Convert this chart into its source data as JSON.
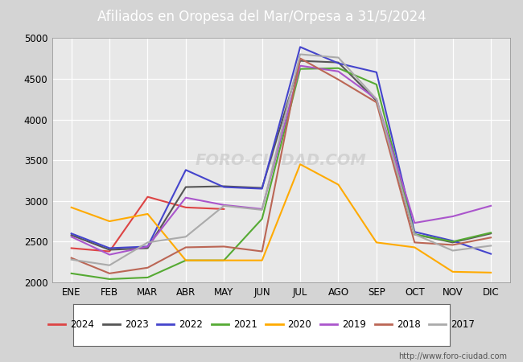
{
  "title": "Afiliados en Oropesa del Mar/Orpesa a 31/5/2024",
  "title_color": "#ffffff",
  "title_bg_color": "#5b8dd6",
  "ylim": [
    2000,
    5000
  ],
  "yticks": [
    2000,
    2500,
    3000,
    3500,
    4000,
    4500,
    5000
  ],
  "months": [
    "ENE",
    "FEB",
    "MAR",
    "ABR",
    "MAY",
    "JUN",
    "JUL",
    "AGO",
    "SEP",
    "OCT",
    "NOV",
    "DIC"
  ],
  "watermark": "FORO-CIUDAD.COM",
  "url": "http://www.foro-ciudad.com",
  "series": {
    "2024": {
      "color": "#dd4444",
      "data": [
        2420,
        2380,
        3050,
        2920,
        2900,
        null,
        null,
        null,
        null,
        null,
        null,
        null
      ]
    },
    "2023": {
      "color": "#555555",
      "data": [
        2580,
        2400,
        2420,
        3170,
        3180,
        3160,
        4720,
        4700,
        4230,
        2590,
        2490,
        2600
      ]
    },
    "2022": {
      "color": "#4444cc",
      "data": [
        2600,
        2420,
        2440,
        3380,
        3170,
        3150,
        4890,
        4690,
        4580,
        2620,
        2510,
        2350
      ]
    },
    "2021": {
      "color": "#55aa33",
      "data": [
        2110,
        2040,
        2060,
        2270,
        2270,
        2780,
        4620,
        4630,
        4430,
        2590,
        2500,
        2610
      ]
    },
    "2020": {
      "color": "#ffaa00",
      "data": [
        2920,
        2750,
        2840,
        2270,
        2270,
        2270,
        3450,
        3200,
        2490,
        2430,
        2130,
        2120
      ]
    },
    "2019": {
      "color": "#aa55cc",
      "data": [
        2560,
        2340,
        2440,
        3040,
        2950,
        2900,
        4660,
        4590,
        4250,
        2730,
        2810,
        2940
      ]
    },
    "2018": {
      "color": "#bb6655",
      "data": [
        2300,
        2110,
        2180,
        2430,
        2440,
        2380,
        4750,
        4490,
        4210,
        2490,
        2460,
        2550
      ]
    },
    "2017": {
      "color": "#aaaaaa",
      "data": [
        2280,
        2210,
        2490,
        2560,
        2940,
        2890,
        4800,
        4760,
        4250,
        2590,
        2390,
        2450
      ]
    }
  },
  "legend_order": [
    "2024",
    "2023",
    "2022",
    "2021",
    "2020",
    "2019",
    "2018",
    "2017"
  ],
  "bg_color": "#d4d4d4",
  "plot_bg_color": "#e8e8e8",
  "grid_color": "#ffffff"
}
